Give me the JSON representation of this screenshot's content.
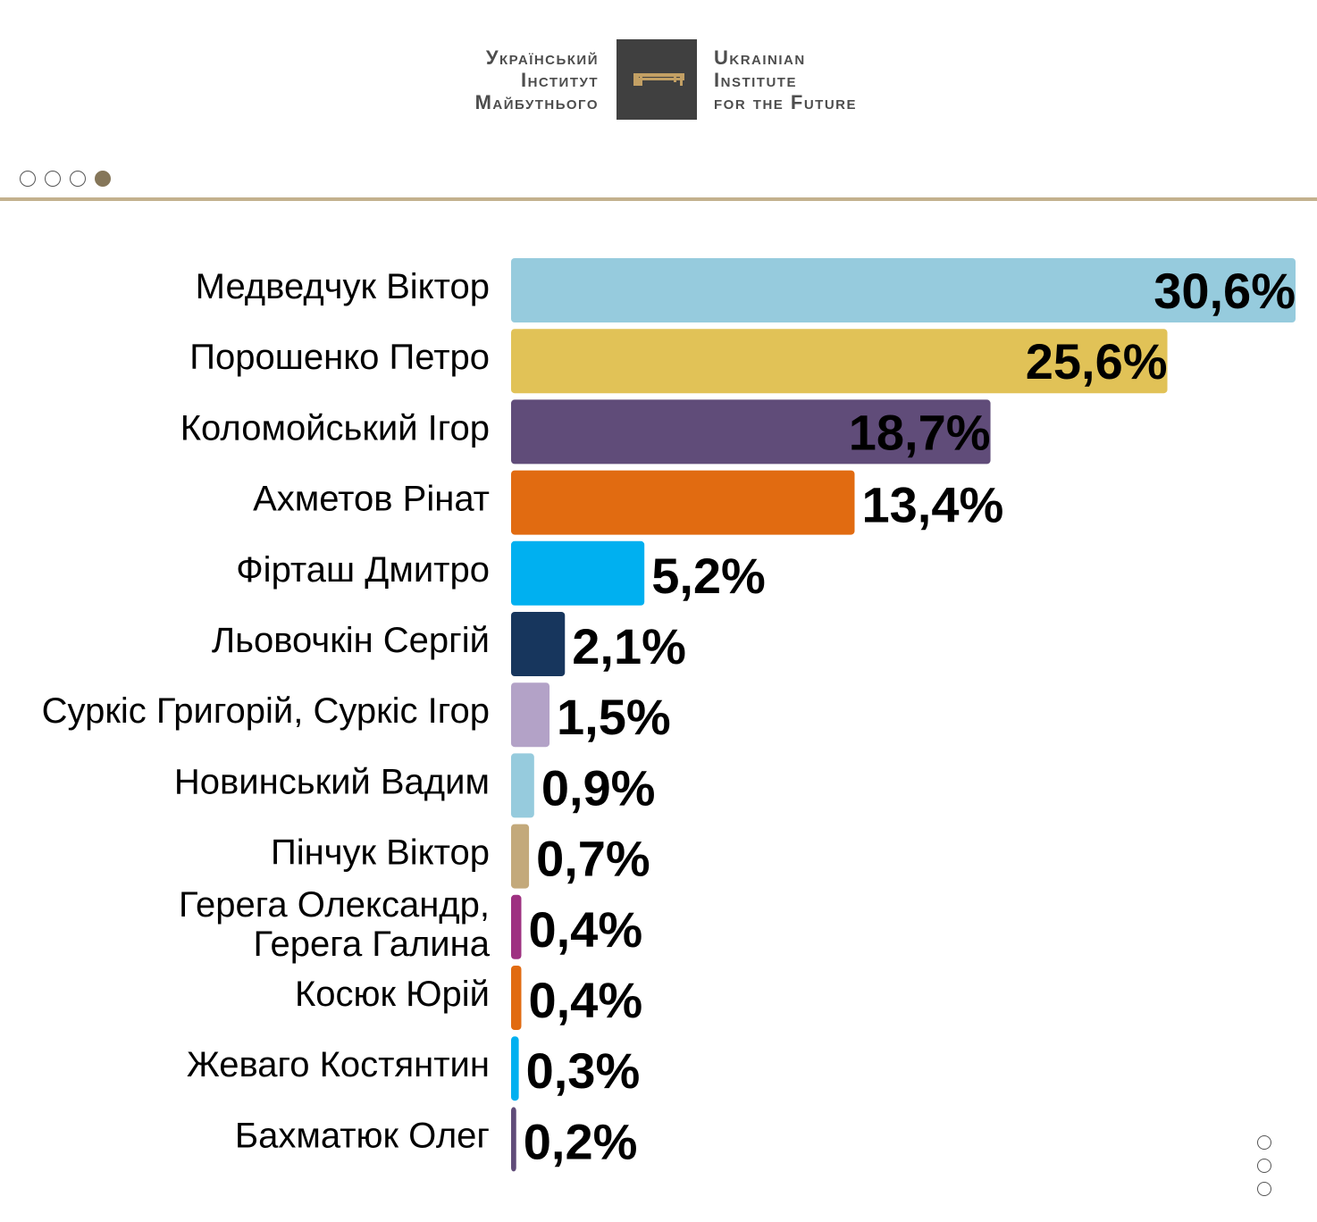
{
  "logo": {
    "left_lines": [
      "Український",
      "Інститут",
      "Майбутнього"
    ],
    "right_lines": [
      "Ukrainian",
      "Institute",
      "for the Future"
    ]
  },
  "pager": {
    "count": 4,
    "active_index": 3
  },
  "side_pager": {
    "count": 3
  },
  "colors": {
    "rule": "#c3b18e",
    "logo_box": "#404040",
    "logo_key": "#c3a064",
    "label_text": "#000000"
  },
  "chart_data": {
    "type": "bar",
    "orientation": "horizontal",
    "title": "",
    "xlabel": "",
    "ylabel": "",
    "xlim": [
      0,
      30.6
    ],
    "grid": false,
    "legend": "none",
    "categories": [
      [
        "Медведчук Віктор"
      ],
      [
        "Порошенко Петро"
      ],
      [
        "Коломойський Ігор"
      ],
      [
        "Ахметов Рінат"
      ],
      [
        "Фірташ Дмитро"
      ],
      [
        "Льовочкін Сергій"
      ],
      [
        "Суркіс Григорій, Суркіс Ігор"
      ],
      [
        "Новинський Вадим"
      ],
      [
        "Пінчук Віктор"
      ],
      [
        "Герега Олександр,",
        "Герега Галина"
      ],
      [
        "Косюк Юрій"
      ],
      [
        "Жеваго Костянтин"
      ],
      [
        "Бахматюк Олег"
      ]
    ],
    "values": [
      30.6,
      25.6,
      18.7,
      13.4,
      5.2,
      2.1,
      1.5,
      0.9,
      0.7,
      0.4,
      0.4,
      0.3,
      0.2
    ],
    "value_labels": [
      "30,6%",
      "25,6%",
      "18,7%",
      "13,4%",
      "5,2%",
      "2,1%",
      "1,5%",
      "0,9%",
      "0,7%",
      "0,4%",
      "0,4%",
      "0,3%",
      "0,2%"
    ],
    "bar_colors": [
      "#96cbdd",
      "#e1c257",
      "#604c79",
      "#e16b11",
      "#00b0f0",
      "#17365d",
      "#b3a2c7",
      "#96cbdd",
      "#c3a97b",
      "#9e3181",
      "#e16b11",
      "#00b0f0",
      "#604c79"
    ]
  }
}
